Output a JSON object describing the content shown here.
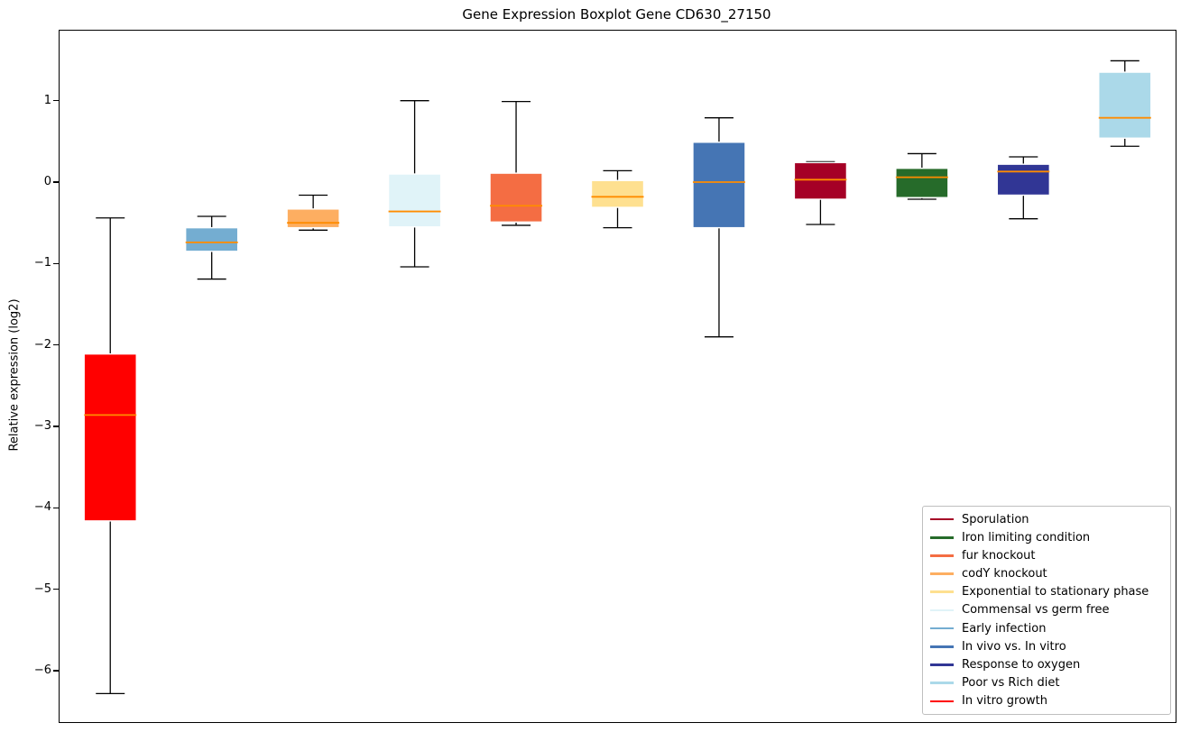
{
  "chart_data": {
    "type": "boxplot",
    "title": "Gene Expression Boxplot Gene CD630_27150",
    "xlabel": "",
    "ylabel": "Relative expression (log2)",
    "ylim": [
      -6.62,
      1.87
    ],
    "yticks": [
      1,
      0,
      -1,
      -2,
      -3,
      -4,
      -5,
      -6
    ],
    "xticklabels": [],
    "grid": false,
    "legend_position": "lower right",
    "boxes": [
      {
        "name": "In vitro growth",
        "color": "#ff0000",
        "whisker_low": -6.27,
        "q1": -4.15,
        "median": -2.85,
        "q3": -2.1,
        "whisker_high": -0.43
      },
      {
        "name": "Early infection",
        "color": "#74add1",
        "whisker_low": -1.18,
        "q1": -0.84,
        "median": -0.73,
        "q3": -0.55,
        "whisker_high": -0.41
      },
      {
        "name": "codY knockout",
        "color": "#fdae61",
        "whisker_low": -0.58,
        "q1": -0.55,
        "median": -0.49,
        "q3": -0.32,
        "whisker_high": -0.15
      },
      {
        "name": "Commensal vs germ free",
        "color": "#e0f3f8",
        "whisker_low": -1.03,
        "q1": -0.54,
        "median": -0.35,
        "q3": 0.11,
        "whisker_high": 1.01
      },
      {
        "name": "fur knockout",
        "color": "#f46d43",
        "whisker_low": -0.52,
        "q1": -0.48,
        "median": -0.28,
        "q3": 0.12,
        "whisker_high": 1.0
      },
      {
        "name": "Exponential to stationary phase",
        "color": "#fee090",
        "whisker_low": -0.55,
        "q1": -0.3,
        "median": -0.17,
        "q3": 0.03,
        "whisker_high": 0.15
      },
      {
        "name": "In vivo vs. In vitro",
        "color": "#4575b4",
        "whisker_low": -1.89,
        "q1": -0.55,
        "median": 0.01,
        "q3": 0.5,
        "whisker_high": 0.8
      },
      {
        "name": "Sporulation",
        "color": "#a50026",
        "whisker_low": -0.51,
        "q1": -0.2,
        "median": 0.04,
        "q3": 0.25,
        "whisker_high": 0.26
      },
      {
        "name": "Iron limiting condition",
        "color": "#266b2a",
        "whisker_low": -0.2,
        "q1": -0.18,
        "median": 0.07,
        "q3": 0.18,
        "whisker_high": 0.36
      },
      {
        "name": "Response to oxygen",
        "color": "#313695",
        "whisker_low": -0.44,
        "q1": -0.15,
        "median": 0.14,
        "q3": 0.23,
        "whisker_high": 0.32
      },
      {
        "name": "Poor vs Rich diet",
        "color": "#abd9e9",
        "whisker_low": 0.45,
        "q1": 0.55,
        "median": 0.8,
        "q3": 1.36,
        "whisker_high": 1.5
      }
    ],
    "legend": [
      {
        "label": "Sporulation",
        "color": "#a50026"
      },
      {
        "label": "Iron limiting condition",
        "color": "#266b2a"
      },
      {
        "label": "fur knockout",
        "color": "#f46d43"
      },
      {
        "label": "codY knockout",
        "color": "#fdae61"
      },
      {
        "label": "Exponential to stationary phase",
        "color": "#fee090"
      },
      {
        "label": "Commensal vs germ free",
        "color": "#e0f3f8"
      },
      {
        "label": "Early infection",
        "color": "#74add1"
      },
      {
        "label": "In vivo vs. In vitro",
        "color": "#4575b4"
      },
      {
        "label": "Response to oxygen",
        "color": "#313695"
      },
      {
        "label": "Poor vs Rich diet",
        "color": "#abd9e9"
      },
      {
        "label": "In vitro growth",
        "color": "#ff0000"
      }
    ],
    "style": {
      "median_color": "#ff8c00",
      "whisker_color": "#000000",
      "box_edge_color": "#ffffff",
      "background": "#ffffff"
    }
  }
}
